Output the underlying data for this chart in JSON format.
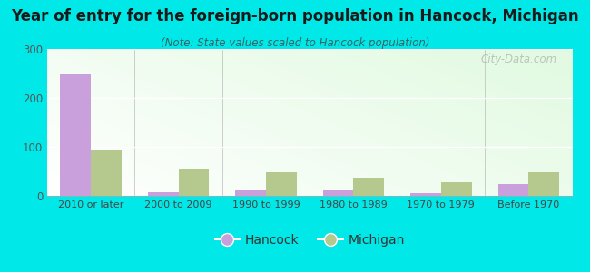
{
  "title": "Year of entry for the foreign-born population in Hancock, Michigan",
  "subtitle": "(Note: State values scaled to Hancock population)",
  "categories": [
    "2010 or later",
    "2000 to 2009",
    "1990 to 1999",
    "1980 to 1989",
    "1970 to 1979",
    "Before 1970"
  ],
  "hancock_values": [
    248,
    8,
    12,
    12,
    6,
    25
  ],
  "michigan_values": [
    95,
    55,
    48,
    37,
    27,
    48
  ],
  "hancock_color": "#c9a0dc",
  "michigan_color": "#b5c98e",
  "background_color": "#00e8e8",
  "ylim": [
    0,
    300
  ],
  "yticks": [
    0,
    100,
    200,
    300
  ],
  "bar_width": 0.35,
  "title_fontsize": 12,
  "subtitle_fontsize": 8.5,
  "legend_fontsize": 10,
  "watermark": "City-Data.com"
}
